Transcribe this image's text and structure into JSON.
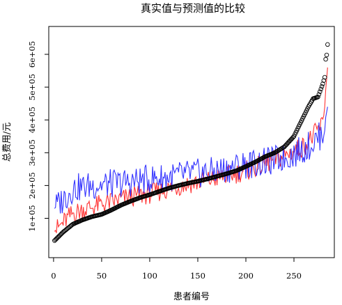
{
  "chart_data": {
    "type": "scatter",
    "title": "真实值与预测值的比较",
    "xlabel": "患者编号",
    "ylabel": "总费用/元",
    "xlim": [
      -5,
      292
    ],
    "ylim": [
      -20000,
      685000
    ],
    "x_ticks": [
      0,
      50,
      100,
      150,
      200,
      250
    ],
    "x_tick_labels": [
      "0",
      "50",
      "100",
      "150",
      "200",
      "250"
    ],
    "y_ticks": [
      100000,
      200000,
      300000,
      400000,
      500000,
      600000
    ],
    "y_tick_labels": [
      "1e+05",
      "2e+05",
      "3e+05",
      "4e+05",
      "5e+05",
      "6e+05"
    ],
    "grid": false,
    "legend": "none",
    "n_points": 285,
    "series": [
      {
        "kind": "points",
        "style": "open-circle",
        "color": "#000000",
        "x": [
          1,
          10,
          20,
          30,
          40,
          50,
          60,
          70,
          80,
          90,
          100,
          110,
          120,
          130,
          140,
          150,
          160,
          170,
          180,
          190,
          200,
          210,
          220,
          230,
          240,
          250,
          260,
          265,
          270,
          275,
          280,
          282,
          283,
          284,
          285
        ],
        "values": [
          32000,
          58000,
          82000,
          95000,
          105000,
          112000,
          125000,
          140000,
          152000,
          163000,
          172000,
          182000,
          192000,
          200000,
          207000,
          213000,
          220000,
          228000,
          236000,
          245000,
          258000,
          272000,
          288000,
          300000,
          318000,
          350000,
          410000,
          440000,
          465000,
          470000,
          510000,
          530000,
          585000,
          598000,
          630000
        ]
      },
      {
        "kind": "line",
        "color": "#ff3333",
        "x": [
          1,
          20,
          40,
          60,
          80,
          100,
          120,
          140,
          160,
          180,
          200,
          220,
          240,
          260,
          270,
          280,
          285
        ],
        "values": [
          60000,
          115000,
          135000,
          150000,
          165000,
          175000,
          190000,
          205000,
          215000,
          230000,
          245000,
          265000,
          290000,
          320000,
          350000,
          390000,
          560000
        ]
      },
      {
        "kind": "line",
        "color": "#3333ff",
        "x": [
          1,
          20,
          40,
          60,
          80,
          100,
          120,
          140,
          160,
          180,
          200,
          220,
          240,
          260,
          270,
          280,
          285
        ],
        "values": [
          130000,
          190000,
          200000,
          205000,
          210000,
          220000,
          225000,
          235000,
          240000,
          250000,
          265000,
          270000,
          285000,
          310000,
          330000,
          360000,
          440000
        ]
      }
    ]
  }
}
